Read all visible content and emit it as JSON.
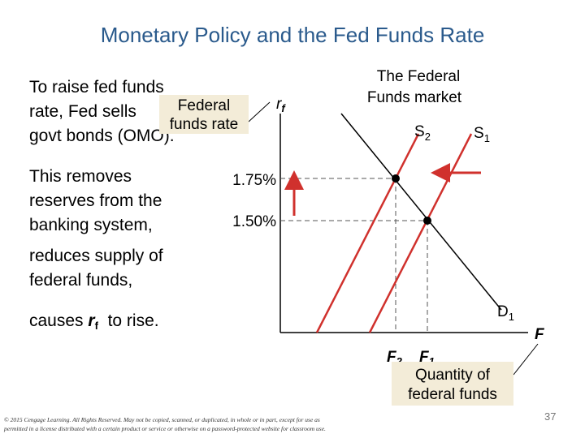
{
  "slide": {
    "title": "Monetary Policy and the Fed Funds Rate",
    "body": {
      "lines": [
        "To raise fed funds",
        "rate, Fed sells",
        "govt bonds (OMO)."
      ],
      "paragraph2": [
        "This removes",
        "reserves from the",
        "banking system,",
        "reduces supply of",
        "federal funds,"
      ],
      "conclusion": {
        "before": "causes ",
        "symbol": "r",
        "subscript": "f",
        "after": "  to rise."
      }
    },
    "diagram": {
      "title": [
        "The Federal",
        "Funds market"
      ],
      "y_axis": {
        "symbol": "r",
        "subscript": "f"
      },
      "rate_labels": [
        "1.75%",
        "1.50%"
      ],
      "supply_new": {
        "symbol": "S",
        "subscript": "2"
      },
      "supply_old": {
        "symbol": "S",
        "subscript": "1"
      },
      "demand": {
        "symbol": "D",
        "subscript": "1"
      },
      "quantity_labels": [
        {
          "symbol": "F",
          "subscript": "2"
        },
        {
          "symbol": "F",
          "subscript": "1"
        }
      ],
      "x_axis_symbol": "F"
    },
    "callouts": {
      "rate": [
        "Federal",
        "funds rate"
      ],
      "quantity": [
        "Quantity of",
        "federal funds"
      ]
    },
    "copyright": [
      "© 2015 Cengage Learning. All Rights Reserved. May not be copied, scanned, or duplicated, in whole or in part, except for use as",
      "permitted in a license distributed with a certain product or service or otherwise on a password-protected website for classroom use."
    ],
    "page_number": "37"
  }
}
